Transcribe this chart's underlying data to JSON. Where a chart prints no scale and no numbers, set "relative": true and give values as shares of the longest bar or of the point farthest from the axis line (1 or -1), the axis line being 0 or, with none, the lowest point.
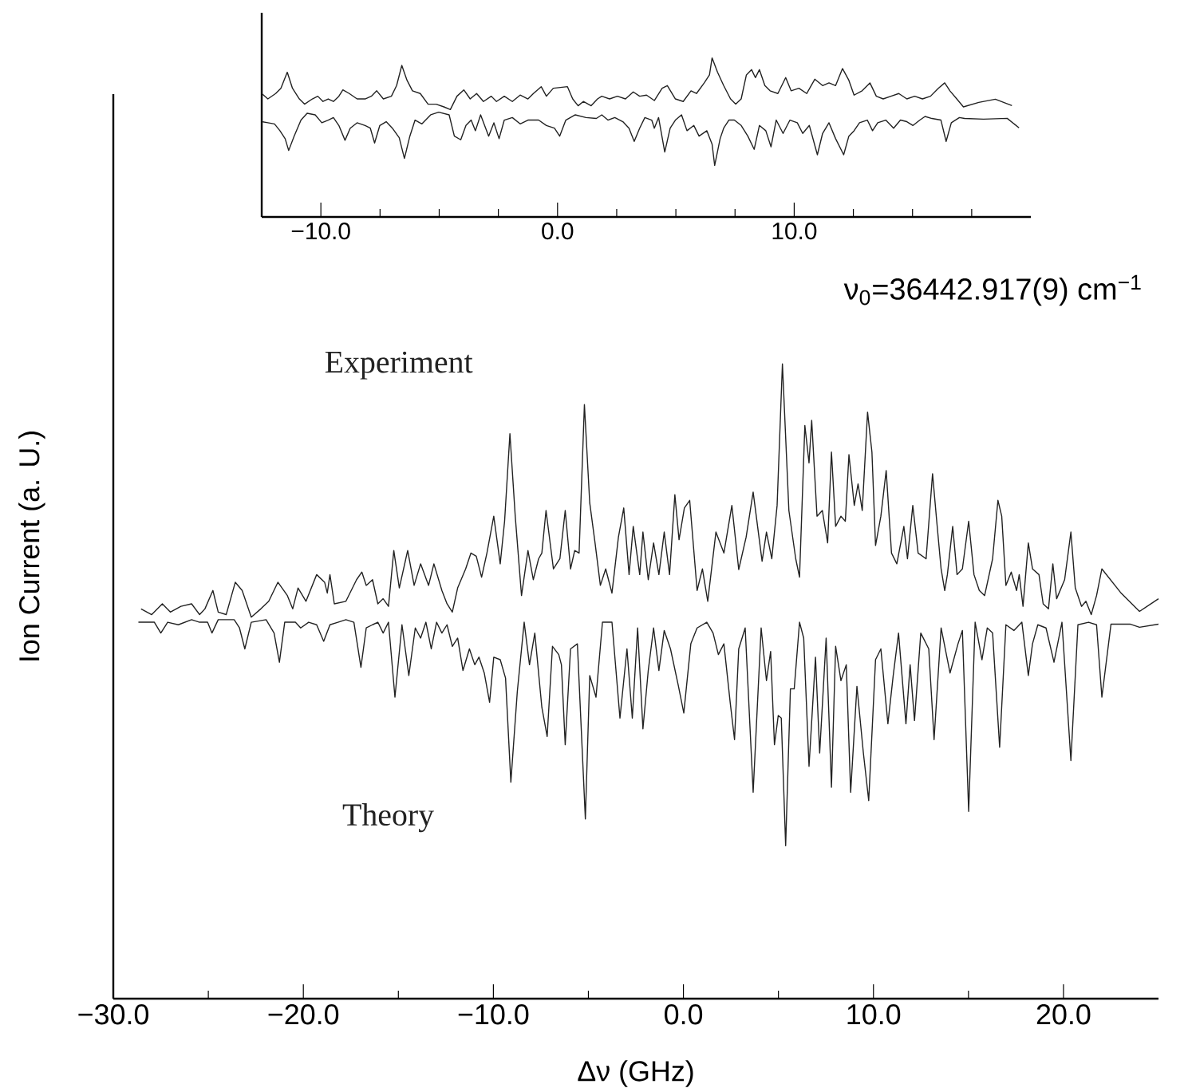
{
  "chart_data": [
    {
      "type": "line",
      "relative": true,
      "xlim": [
        -12.5,
        20
      ],
      "tick_labels": "x",
      "xticks": [
        {
          "value": -10,
          "label": "−10.0"
        },
        {
          "value": -7.5,
          "label": null
        },
        {
          "value": -5,
          "label": null
        },
        {
          "value": -2.5,
          "label": null
        },
        {
          "value": 0,
          "label": "0.0"
        },
        {
          "value": 2.5,
          "label": null
        },
        {
          "value": 5,
          "label": null
        },
        {
          "value": 7.5,
          "label": null
        },
        {
          "value": 10,
          "label": "10.0"
        },
        {
          "value": 12.5,
          "label": null
        },
        {
          "value": 15,
          "label": null
        },
        {
          "value": 17.5,
          "label": null
        }
      ],
      "series": [
        {
          "color": "#222222",
          "x": [
            -12.5,
            -12.24,
            -11.91,
            -11.69,
            -11.42,
            -11.2,
            -10.91,
            -10.69,
            -10.36,
            -10.13,
            -9.91,
            -9.69,
            -9.47,
            -9.24,
            -9.07,
            -8.8,
            -8.47,
            -8.13,
            -7.87,
            -7.64,
            -7.36,
            -7.02,
            -6.8,
            -6.58,
            -6.36,
            -6.13,
            -5.8,
            -5.47,
            -5.13,
            -4.8,
            -4.53,
            -4.25,
            -3.96,
            -3.69,
            -3.42,
            -3.13,
            -2.8,
            -2.58,
            -2.25,
            -1.91,
            -1.58,
            -1.25,
            -1.02,
            -0.69,
            -0.47,
            -0.18,
            0.42,
            0.64,
            0.87,
            1.09,
            1.42,
            1.69,
            1.87,
            2.2,
            2.53,
            2.87,
            3.2,
            3.47,
            3.76,
            4.09,
            4.42,
            4.64,
            4.98,
            5.31,
            5.64,
            5.87,
            6.2,
            6.42,
            6.53,
            6.76,
            7.02,
            7.31,
            7.53,
            7.76,
            7.98,
            8.2,
            8.36,
            8.53,
            8.76,
            8.98,
            9.31,
            9.64,
            9.87,
            10.2,
            10.53,
            10.87,
            11.2,
            11.47,
            11.75,
            12.04,
            12.31,
            12.53,
            12.87,
            13.2,
            13.47,
            13.76,
            14.09,
            14.42,
            14.76,
            15.09,
            15.42,
            15.76,
            16.09,
            16.36,
            16.58,
            16.87,
            17.15,
            17.8,
            18.5,
            19.2
          ],
          "values": [
            0.776,
            0.742,
            0.776,
            0.809,
            0.91,
            0.809,
            0.742,
            0.709,
            0.742,
            0.759,
            0.726,
            0.742,
            0.726,
            0.759,
            0.799,
            0.776,
            0.742,
            0.742,
            0.759,
            0.793,
            0.742,
            0.759,
            0.826,
            0.953,
            0.859,
            0.793,
            0.776,
            0.709,
            0.709,
            0.692,
            0.675,
            0.759,
            0.799,
            0.742,
            0.776,
            0.726,
            0.759,
            0.726,
            0.759,
            0.726,
            0.766,
            0.742,
            0.776,
            0.819,
            0.759,
            0.809,
            0.819,
            0.742,
            0.699,
            0.726,
            0.699,
            0.742,
            0.759,
            0.742,
            0.759,
            0.742,
            0.786,
            0.759,
            0.766,
            0.732,
            0.809,
            0.826,
            0.742,
            0.726,
            0.793,
            0.776,
            0.843,
            0.893,
            1.0,
            0.91,
            0.826,
            0.742,
            0.709,
            0.742,
            0.893,
            0.926,
            0.876,
            0.926,
            0.826,
            0.793,
            0.776,
            0.876,
            0.793,
            0.809,
            0.776,
            0.866,
            0.826,
            0.843,
            0.826,
            0.933,
            0.859,
            0.766,
            0.793,
            0.843,
            0.759,
            0.742,
            0.759,
            0.776,
            0.742,
            0.759,
            0.742,
            0.759,
            0.809,
            0.843,
            0.793,
            0.742,
            0.692,
            0.72,
            0.74,
            0.7
          ]
        },
        {
          "color": "#222222",
          "x": [
            -12.5,
            -12.24,
            -11.96,
            -11.73,
            -11.51,
            -11.36,
            -11.13,
            -10.84,
            -10.58,
            -10.24,
            -9.96,
            -9.69,
            -9.47,
            -9.24,
            -8.98,
            -8.76,
            -8.47,
            -8.13,
            -7.91,
            -7.73,
            -7.51,
            -7.24,
            -6.98,
            -6.69,
            -6.47,
            -6.24,
            -6.02,
            -5.73,
            -5.36,
            -5.02,
            -4.58,
            -4.36,
            -4.09,
            -3.87,
            -3.65,
            -3.47,
            -3.25,
            -2.91,
            -2.69,
            -2.47,
            -2.25,
            -1.91,
            -1.58,
            -1.25,
            -0.8,
            -0.47,
            -0.13,
            0.09,
            0.35,
            0.75,
            1.2,
            1.64,
            1.87,
            2.13,
            2.42,
            2.76,
            3.02,
            3.24,
            3.47,
            3.69,
            3.98,
            4.09,
            4.27,
            4.53,
            4.76,
            4.98,
            5.24,
            5.47,
            5.76,
            5.98,
            6.31,
            6.53,
            6.64,
            6.87,
            7.02,
            7.24,
            7.47,
            7.76,
            8.04,
            8.31,
            8.53,
            8.8,
            9.02,
            9.24,
            9.53,
            9.82,
            10.13,
            10.36,
            10.64,
            10.98,
            11.2,
            11.47,
            11.75,
            12.09,
            12.31,
            12.53,
            12.76,
            13.09,
            13.31,
            13.53,
            13.87,
            14.2,
            14.49,
            14.76,
            15.02,
            15.31,
            15.53,
            15.82,
            16.2,
            16.42,
            16.64,
            16.98,
            17.2,
            18,
            19,
            19.5
          ],
          "values": [
            0.599,
            0.592,
            0.585,
            0.542,
            0.492,
            0.418,
            0.508,
            0.609,
            0.652,
            0.642,
            0.592,
            0.609,
            0.625,
            0.575,
            0.482,
            0.558,
            0.592,
            0.575,
            0.558,
            0.465,
            0.575,
            0.599,
            0.558,
            0.498,
            0.368,
            0.508,
            0.609,
            0.585,
            0.642,
            0.659,
            0.642,
            0.508,
            0.485,
            0.575,
            0.609,
            0.542,
            0.642,
            0.508,
            0.592,
            0.492,
            0.609,
            0.625,
            0.585,
            0.609,
            0.609,
            0.575,
            0.558,
            0.508,
            0.609,
            0.642,
            0.625,
            0.619,
            0.642,
            0.609,
            0.625,
            0.599,
            0.558,
            0.475,
            0.558,
            0.625,
            0.609,
            0.558,
            0.625,
            0.408,
            0.558,
            0.609,
            0.642,
            0.542,
            0.575,
            0.508,
            0.542,
            0.458,
            0.324,
            0.492,
            0.558,
            0.609,
            0.609,
            0.575,
            0.508,
            0.425,
            0.575,
            0.542,
            0.441,
            0.609,
            0.525,
            0.609,
            0.592,
            0.525,
            0.575,
            0.391,
            0.525,
            0.592,
            0.492,
            0.391,
            0.508,
            0.542,
            0.592,
            0.609,
            0.542,
            0.592,
            0.609,
            0.558,
            0.609,
            0.599,
            0.575,
            0.609,
            0.632,
            0.619,
            0.609,
            0.475,
            0.592,
            0.625,
            0.619,
            0.615,
            0.62,
            0.56
          ]
        }
      ]
    },
    {
      "type": "line",
      "relative": true,
      "xlabel": "Δν (GHz)",
      "ylabel": "Ion Current (a. U.)",
      "xlim": [
        -30,
        25
      ],
      "tick_labels": "x",
      "xticks": [
        {
          "value": -30,
          "label": "−30.0"
        },
        {
          "value": -25,
          "label": null
        },
        {
          "value": -20,
          "label": "−20.0"
        },
        {
          "value": -15,
          "label": null
        },
        {
          "value": -10,
          "label": "−10.0"
        },
        {
          "value": -5,
          "label": null
        },
        {
          "value": 0,
          "label": "0.0"
        },
        {
          "value": 5,
          "label": null
        },
        {
          "value": 10,
          "label": "10.0"
        },
        {
          "value": 15,
          "label": null
        },
        {
          "value": 20,
          "label": "20.0"
        }
      ],
      "annotations": [
        "ν$_{0}$=36442.917(9) cm$^{−1}$"
      ],
      "series": [
        {
          "name": "Experiment",
          "color": "#222222",
          "x": [
            -28.54,
            -27.98,
            -27.42,
            -27.0,
            -26.44,
            -25.88,
            -25.46,
            -25.18,
            -24.76,
            -24.48,
            -24.06,
            -23.58,
            -23.22,
            -22.74,
            -22.24,
            -21.82,
            -21.34,
            -20.84,
            -20.56,
            -20.28,
            -19.86,
            -19.3,
            -18.88,
            -18.74,
            -18.6,
            -18.37,
            -17.76,
            -17.2,
            -16.92,
            -16.69,
            -16.36,
            -16.08,
            -15.8,
            -15.52,
            -15.24,
            -14.95,
            -14.51,
            -14.17,
            -13.83,
            -13.41,
            -13.13,
            -12.71,
            -12.44,
            -12.16,
            -11.88,
            -11.46,
            -11.18,
            -10.9,
            -10.62,
            -10.34,
            -9.98,
            -9.64,
            -9.41,
            -9.13,
            -8.85,
            -8.52,
            -8.18,
            -7.9,
            -7.62,
            -7.45,
            -7.23,
            -6.84,
            -6.5,
            -6.22,
            -5.94,
            -5.72,
            -5.49,
            -5.21,
            -4.93,
            -4.65,
            -4.37,
            -4.09,
            -3.76,
            -3.42,
            -3.14,
            -2.86,
            -2.64,
            -2.3,
            -2.13,
            -1.85,
            -1.57,
            -1.29,
            -1.01,
            -0.73,
            -0.45,
            -0.23,
            0.05,
            0.33,
            0.72,
            1.0,
            1.28,
            1.71,
            2.13,
            2.55,
            2.91,
            3.3,
            3.67,
            4.14,
            4.37,
            4.65,
            4.93,
            5.21,
            5.55,
            5.91,
            6.11,
            6.39,
            6.61,
            6.75,
            7.03,
            7.31,
            7.59,
            7.79,
            8.01,
            8.29,
            8.52,
            8.71,
            8.99,
            9.19,
            9.41,
            9.69,
            9.92,
            10.11,
            10.39,
            10.67,
            10.95,
            11.23,
            11.6,
            11.79,
            12.07,
            12.35,
            12.77,
            13.11,
            13.33,
            13.56,
            13.75,
            13.89,
            14.17,
            14.4,
            14.68,
            15.01,
            15.29,
            15.57,
            15.85,
            16.27,
            16.55,
            16.75,
            16.97,
            17.25,
            17.53,
            17.67,
            17.87,
            18.15,
            18.37,
            18.71,
            18.93,
            19.21,
            19.44,
            19.64,
            20.06,
            20.39,
            20.62,
            20.95,
            21.18,
            21.46,
            21.74,
            22.02,
            23,
            24,
            25
          ],
          "values": [
            0.614,
            0.605,
            0.622,
            0.609,
            0.618,
            0.622,
            0.605,
            0.614,
            0.643,
            0.609,
            0.605,
            0.656,
            0.643,
            0.601,
            0.614,
            0.626,
            0.656,
            0.635,
            0.614,
            0.647,
            0.626,
            0.668,
            0.656,
            0.639,
            0.668,
            0.622,
            0.626,
            0.66,
            0.672,
            0.651,
            0.66,
            0.622,
            0.63,
            0.618,
            0.706,
            0.647,
            0.706,
            0.651,
            0.685,
            0.651,
            0.685,
            0.643,
            0.622,
            0.609,
            0.647,
            0.677,
            0.702,
            0.697,
            0.664,
            0.702,
            0.76,
            0.685,
            0.752,
            0.89,
            0.76,
            0.635,
            0.706,
            0.66,
            0.693,
            0.702,
            0.769,
            0.677,
            0.693,
            0.769,
            0.677,
            0.706,
            0.702,
            0.936,
            0.781,
            0.718,
            0.651,
            0.677,
            0.639,
            0.727,
            0.773,
            0.668,
            0.744,
            0.668,
            0.735,
            0.66,
            0.718,
            0.668,
            0.735,
            0.668,
            0.794,
            0.723,
            0.773,
            0.785,
            0.643,
            0.677,
            0.626,
            0.735,
            0.702,
            0.777,
            0.676,
            0.727,
            0.798,
            0.689,
            0.735,
            0.693,
            0.777,
            1.0,
            0.769,
            0.693,
            0.664,
            0.903,
            0.844,
            0.911,
            0.76,
            0.769,
            0.718,
            0.861,
            0.744,
            0.76,
            0.752,
            0.857,
            0.777,
            0.811,
            0.769,
            0.924,
            0.861,
            0.714,
            0.76,
            0.832,
            0.702,
            0.685,
            0.744,
            0.693,
            0.777,
            0.702,
            0.693,
            0.827,
            0.752,
            0.677,
            0.643,
            0.668,
            0.744,
            0.668,
            0.677,
            0.752,
            0.668,
            0.643,
            0.635,
            0.693,
            0.785,
            0.76,
            0.651,
            0.672,
            0.643,
            0.668,
            0.618,
            0.718,
            0.677,
            0.668,
            0.622,
            0.614,
            0.685,
            0.63,
            0.66,
            0.735,
            0.647,
            0.618,
            0.626,
            0.605,
            0.635,
            0.677,
            0.64,
            0.61,
            0.63
          ]
        },
        {
          "name": "Theory",
          "color": "#222222",
          "x": [
            -28.68,
            -27.84,
            -27.5,
            -27.14,
            -26.58,
            -25.88,
            -25.46,
            -25.04,
            -24.81,
            -24.48,
            -23.64,
            -23.36,
            -23.08,
            -22.74,
            -21.96,
            -21.54,
            -21.26,
            -20.98,
            -20.42,
            -20.14,
            -19.72,
            -19.3,
            -18.93,
            -18.6,
            -18.18,
            -17.76,
            -17.34,
            -16.97,
            -16.69,
            -16.36,
            -16.08,
            -15.8,
            -15.52,
            -15.18,
            -14.81,
            -14.45,
            -14.11,
            -13.83,
            -13.55,
            -13.27,
            -12.99,
            -12.71,
            -12.44,
            -12.16,
            -11.88,
            -11.6,
            -11.26,
            -10.98,
            -10.76,
            -10.48,
            -10.2,
            -9.98,
            -9.64,
            -9.36,
            -9.08,
            -8.74,
            -8.38,
            -8.1,
            -7.82,
            -7.45,
            -7.17,
            -6.89,
            -6.56,
            -6.42,
            -6.22,
            -5.94,
            -5.58,
            -5.16,
            -4.93,
            -4.6,
            -4.26,
            -3.76,
            -3.34,
            -2.97,
            -2.69,
            -2.41,
            -2.13,
            -1.85,
            -1.57,
            -1.29,
            -1.01,
            -0.68,
            -0.26,
            0.02,
            0.39,
            0.72,
            1.23,
            1.56,
            1.84,
            2.13,
            2.46,
            2.69,
            2.91,
            3.25,
            3.67,
            4.09,
            4.37,
            4.59,
            4.79,
            4.99,
            5.15,
            5.38,
            5.63,
            5.83,
            6.11,
            6.33,
            6.61,
            6.95,
            7.17,
            7.51,
            7.79,
            8.01,
            8.29,
            8.57,
            8.8,
            9.13,
            9.47,
            9.75,
            10.11,
            10.39,
            10.76,
            11.04,
            11.32,
            11.71,
            11.93,
            12.16,
            12.49,
            12.91,
            13.19,
            13.56,
            14.03,
            14.45,
            14.68,
            15.01,
            15.35,
            15.71,
            15.99,
            16.27,
            16.64,
            16.97,
            17.39,
            17.81,
            18.15,
            18.37,
            18.65,
            19.08,
            19.5,
            19.92,
            20.39,
            20.76,
            21.32,
            21.74,
            22.02,
            22.5,
            23.5,
            24,
            25
          ],
          "values": [
            0.593,
            0.593,
            0.576,
            0.593,
            0.589,
            0.597,
            0.593,
            0.593,
            0.576,
            0.597,
            0.597,
            0.584,
            0.551,
            0.593,
            0.597,
            0.576,
            0.53,
            0.593,
            0.593,
            0.584,
            0.593,
            0.589,
            0.563,
            0.589,
            0.593,
            0.597,
            0.593,
            0.522,
            0.584,
            0.589,
            0.593,
            0.576,
            0.593,
            0.475,
            0.589,
            0.509,
            0.584,
            0.568,
            0.593,
            0.551,
            0.593,
            0.576,
            0.589,
            0.555,
            0.568,
            0.517,
            0.551,
            0.526,
            0.538,
            0.513,
            0.467,
            0.538,
            0.534,
            0.505,
            0.341,
            0.484,
            0.593,
            0.526,
            0.576,
            0.459,
            0.413,
            0.555,
            0.542,
            0.526,
            0.4,
            0.551,
            0.559,
            0.283,
            0.509,
            0.475,
            0.593,
            0.593,
            0.442,
            0.551,
            0.442,
            0.584,
            0.425,
            0.517,
            0.584,
            0.517,
            0.58,
            0.551,
            0.492,
            0.45,
            0.559,
            0.584,
            0.593,
            0.576,
            0.542,
            0.559,
            0.467,
            0.408,
            0.551,
            0.584,
            0.325,
            0.584,
            0.501,
            0.547,
            0.4,
            0.446,
            0.442,
            0.241,
            0.488,
            0.488,
            0.593,
            0.568,
            0.366,
            0.538,
            0.387,
            0.568,
            0.333,
            0.555,
            0.501,
            0.526,
            0.325,
            0.492,
            0.387,
            0.312,
            0.534,
            0.551,
            0.433,
            0.509,
            0.576,
            0.433,
            0.526,
            0.438,
            0.576,
            0.551,
            0.408,
            0.584,
            0.513,
            0.559,
            0.58,
            0.295,
            0.593,
            0.534,
            0.584,
            0.576,
            0.396,
            0.589,
            0.58,
            0.593,
            0.509,
            0.559,
            0.589,
            0.584,
            0.53,
            0.593,
            0.375,
            0.589,
            0.593,
            0.589,
            0.475,
            0.59,
            0.59,
            0.585,
            0.59
          ]
        }
      ]
    }
  ]
}
